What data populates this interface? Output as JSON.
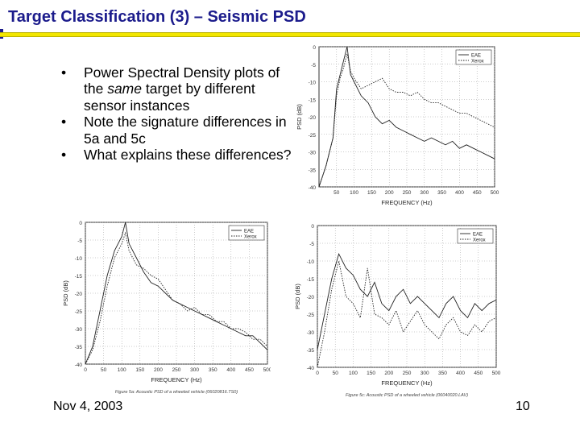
{
  "slide": {
    "title": "Target Classification (3) – Seismic PSD",
    "bullets": [
      {
        "before": "Power Spectral Density plots of the ",
        "emphasis": "same",
        "after": " target by different sensor instances"
      },
      {
        "before": "Note the signature differences in 5a and 5c",
        "emphasis": "",
        "after": ""
      },
      {
        "before": "What explains these differences?",
        "emphasis": "",
        "after": ""
      }
    ],
    "footer_date": "Nov 4, 2003",
    "page_number": "10"
  },
  "colors": {
    "title": "#1c1c8c",
    "rule": "#f2e600"
  },
  "chart_data": [
    {
      "type": "line",
      "xlabel": "FREQUENCY (Hz)",
      "ylabel": "PSD (dB)",
      "xlim": [
        0,
        500
      ],
      "ylim": [
        -40,
        0
      ],
      "xticks": [
        "50",
        "100",
        "150",
        "200",
        "250",
        "300",
        "350",
        "400",
        "450",
        "500"
      ],
      "yticks": [
        "0",
        "-5",
        "-10",
        "-15",
        "-20",
        "-25",
        "-30",
        "-35",
        "-40"
      ],
      "legend": [
        "EAE",
        "Xerox"
      ],
      "caption": "",
      "series": [
        {
          "name": "EAE",
          "x": [
            0,
            20,
            40,
            50,
            60,
            70,
            80,
            90,
            100,
            120,
            140,
            160,
            180,
            200,
            220,
            240,
            260,
            280,
            300,
            320,
            340,
            360,
            380,
            400,
            420,
            440,
            460,
            480,
            500
          ],
          "values": [
            -40,
            -34,
            -26,
            -12,
            -8,
            -4,
            0,
            -8,
            -10,
            -14,
            -16,
            -20,
            -22,
            -21,
            -23,
            -24,
            -25,
            -26,
            -27,
            -26,
            -27,
            -28,
            -27,
            -29,
            -28,
            -29,
            -30,
            -31,
            -32
          ]
        },
        {
          "name": "Xerox",
          "x": [
            0,
            20,
            40,
            50,
            60,
            70,
            80,
            90,
            100,
            120,
            140,
            160,
            180,
            200,
            220,
            240,
            260,
            280,
            300,
            320,
            340,
            360,
            380,
            400,
            420,
            440,
            460,
            480,
            500
          ],
          "values": [
            -40,
            -34,
            -26,
            -14,
            -9,
            -6,
            -2,
            -7,
            -9,
            -12,
            -11,
            -10,
            -9,
            -12,
            -13,
            -13,
            -14,
            -13,
            -15,
            -16,
            -16,
            -17,
            -18,
            -19,
            -19,
            -20,
            -21,
            -22,
            -23
          ]
        }
      ]
    },
    {
      "type": "line",
      "xlabel": "FREQUENCY (Hz)",
      "ylabel": "PSD (dB)",
      "xlim": [
        0,
        500
      ],
      "ylim": [
        -40,
        0
      ],
      "xticks": [
        "0",
        "50",
        "100",
        "150",
        "200",
        "250",
        "300",
        "350",
        "400",
        "450",
        "500"
      ],
      "yticks": [
        "0",
        "-5",
        "-10",
        "-15",
        "-20",
        "-25",
        "-30",
        "-35",
        "-40"
      ],
      "legend": [
        "EAE",
        "Xerox"
      ],
      "caption": "Figure 5a: Acoustic PSD of a wheeled vehicle (06020816.TS0)",
      "series": [
        {
          "name": "EAE",
          "x": [
            0,
            20,
            40,
            60,
            80,
            100,
            110,
            120,
            140,
            160,
            180,
            200,
            220,
            240,
            260,
            280,
            300,
            320,
            340,
            360,
            380,
            400,
            420,
            440,
            460,
            480,
            500
          ],
          "values": [
            -40,
            -35,
            -25,
            -15,
            -8,
            -4,
            0,
            -6,
            -10,
            -14,
            -17,
            -18,
            -20,
            -22,
            -23,
            -24,
            -25,
            -26,
            -27,
            -28,
            -29,
            -30,
            -31,
            -32,
            -32,
            -34,
            -36
          ]
        },
        {
          "name": "Xerox",
          "x": [
            0,
            20,
            40,
            60,
            80,
            100,
            110,
            120,
            140,
            160,
            180,
            200,
            220,
            240,
            260,
            280,
            300,
            320,
            340,
            360,
            380,
            400,
            420,
            440,
            460,
            480,
            500
          ],
          "values": [
            -40,
            -36,
            -28,
            -18,
            -10,
            -6,
            -3,
            -8,
            -12,
            -13,
            -15,
            -16,
            -19,
            -22,
            -23,
            -25,
            -24,
            -26,
            -26,
            -28,
            -28,
            -30,
            -30,
            -31,
            -33,
            -33,
            -35
          ]
        }
      ]
    },
    {
      "type": "line",
      "xlabel": "FREQUENCY (Hz)",
      "ylabel": "PSD (dB)",
      "xlim": [
        0,
        500
      ],
      "ylim": [
        -40,
        0
      ],
      "xticks": [
        "0",
        "50",
        "100",
        "150",
        "200",
        "250",
        "300",
        "350",
        "400",
        "450",
        "500"
      ],
      "yticks": [
        "0",
        "-5",
        "-10",
        "-15",
        "-20",
        "-25",
        "-30",
        "-35",
        "-40"
      ],
      "legend": [
        "EAE",
        "Xerox"
      ],
      "caption": "Figure 5c: Acoustic PSD of a wheeled vehicle (06040020.LAV)",
      "series": [
        {
          "name": "EAE",
          "x": [
            0,
            20,
            40,
            60,
            80,
            100,
            120,
            140,
            160,
            180,
            200,
            220,
            240,
            260,
            280,
            300,
            320,
            340,
            360,
            380,
            400,
            420,
            440,
            460,
            480,
            500
          ],
          "values": [
            -35,
            -25,
            -15,
            -8,
            -12,
            -14,
            -18,
            -20,
            -16,
            -22,
            -24,
            -20,
            -18,
            -22,
            -20,
            -22,
            -24,
            -26,
            -22,
            -20,
            -24,
            -26,
            -22,
            -24,
            -22,
            -21
          ]
        },
        {
          "name": "Xerox",
          "x": [
            0,
            20,
            40,
            60,
            80,
            100,
            120,
            140,
            160,
            180,
            200,
            220,
            240,
            260,
            280,
            300,
            320,
            340,
            360,
            380,
            400,
            420,
            440,
            460,
            480,
            500
          ],
          "values": [
            -40,
            -30,
            -18,
            -10,
            -20,
            -22,
            -26,
            -12,
            -25,
            -26,
            -28,
            -24,
            -30,
            -27,
            -24,
            -28,
            -30,
            -32,
            -28,
            -26,
            -30,
            -31,
            -28,
            -30,
            -27,
            -26
          ]
        }
      ]
    }
  ]
}
